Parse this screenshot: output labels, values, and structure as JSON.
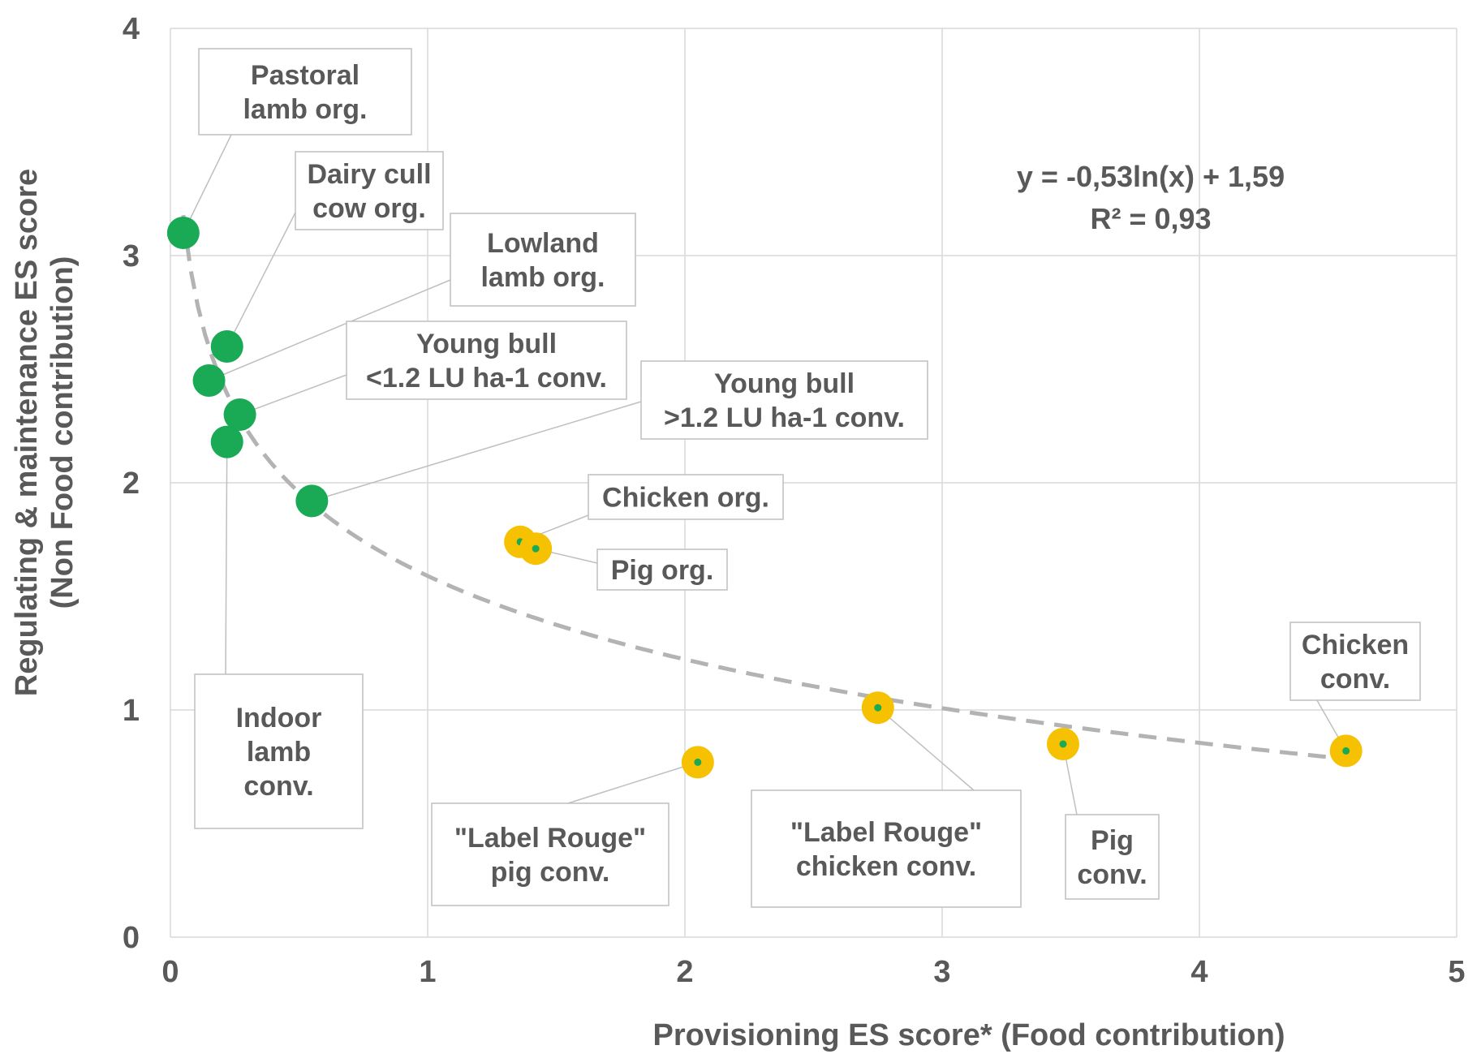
{
  "chart_data": {
    "type": "scatter",
    "xlabel": "Provisioning ES score* (Food contribution)",
    "ylabel_lines": [
      "Regulating & maintenance ES score",
      "(Non Food contribution)"
    ],
    "xlim": [
      0,
      5
    ],
    "ylim": [
      0,
      4
    ],
    "x_ticks": [
      "0",
      "1",
      "2",
      "3",
      "4",
      "5"
    ],
    "y_ticks": [
      "0",
      "1",
      "2",
      "3",
      "4"
    ],
    "grid": true,
    "colors": {
      "ruminant": "#1aaa55",
      "monogastric": "#f5c100",
      "center_dot": "#1aaa55",
      "trend": "#b3b3b3",
      "text": "#595959"
    },
    "points": [
      {
        "x": 0.05,
        "y": 3.1,
        "group": "ruminant",
        "label_lines": [
          "Pastoral",
          "lamb org."
        ]
      },
      {
        "x": 0.22,
        "y": 2.6,
        "group": "ruminant",
        "label_lines": [
          "Dairy cull",
          "cow org."
        ]
      },
      {
        "x": 0.15,
        "y": 2.45,
        "group": "ruminant",
        "label_lines": [
          "Lowland",
          "lamb org."
        ]
      },
      {
        "x": 0.27,
        "y": 2.3,
        "group": "ruminant",
        "label_lines": [
          "Young bull",
          "<1.2 LU ha-1 conv."
        ]
      },
      {
        "x": 0.22,
        "y": 2.18,
        "group": "ruminant",
        "label_lines": [
          "Indoor",
          "lamb",
          "conv."
        ]
      },
      {
        "x": 0.55,
        "y": 1.92,
        "group": "ruminant",
        "label_lines": [
          "Young bull",
          ">1.2 LU ha-1 conv."
        ]
      },
      {
        "x": 1.36,
        "y": 1.74,
        "group": "monogastric",
        "label_lines": [
          "Chicken org."
        ]
      },
      {
        "x": 1.42,
        "y": 1.71,
        "group": "monogastric",
        "label_lines": [
          "Pig org."
        ]
      },
      {
        "x": 2.05,
        "y": 0.77,
        "group": "monogastric",
        "label_lines": [
          "\"Label Rouge\"",
          "pig conv."
        ]
      },
      {
        "x": 2.75,
        "y": 1.01,
        "group": "monogastric",
        "label_lines": [
          "\"Label Rouge\"",
          "chicken conv."
        ]
      },
      {
        "x": 3.47,
        "y": 0.85,
        "group": "monogastric",
        "label_lines": [
          "Pig",
          "conv."
        ]
      },
      {
        "x": 4.57,
        "y": 0.82,
        "group": "monogastric",
        "label_lines": [
          "Chicken",
          "conv."
        ]
      }
    ],
    "trendline": {
      "type": "logarithmic",
      "a": -0.53,
      "b": 1.59,
      "x_range": [
        0.05,
        4.57
      ]
    },
    "equation_lines": [
      "y = -0,53ln(x) + 1,59",
      "R² = 0,93"
    ]
  }
}
